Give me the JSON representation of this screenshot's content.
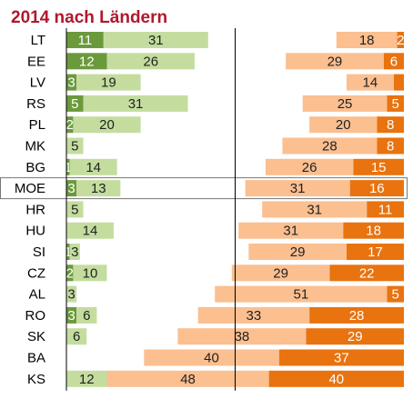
{
  "chart_data": {
    "type": "diverging_bar",
    "title": "2014 nach Ländern",
    "categories": [
      "LT",
      "EE",
      "LV",
      "RS",
      "PL",
      "MK",
      "BG",
      "MOE",
      "HR",
      "HU",
      "SI",
      "CZ",
      "AL",
      "RO",
      "SK",
      "BA",
      "KS"
    ],
    "highlight": "MOE",
    "xlim": [
      0,
      100
    ],
    "series": [
      {
        "color": "#6b9a3c",
        "label_color": "#ffffff",
        "stack": "left",
        "values": [
          11,
          12,
          3,
          5,
          2,
          null,
          1,
          3,
          null,
          null,
          1,
          2,
          null,
          3,
          null,
          null,
          null
        ]
      },
      {
        "color": "#c4dd9f",
        "label_color": "#222222",
        "stack": "left",
        "values": [
          31,
          26,
          19,
          31,
          20,
          5,
          14,
          13,
          5,
          14,
          3,
          10,
          3,
          6,
          6,
          null,
          12
        ]
      },
      {
        "color": "#fbbf90",
        "label_color": "#222222",
        "stack": "right",
        "values": [
          18,
          29,
          14,
          25,
          20,
          28,
          26,
          31,
          31,
          31,
          29,
          29,
          51,
          33,
          38,
          40,
          48
        ]
      },
      {
        "color": "#e8730f",
        "label_color": "#ffffff",
        "stack": "right",
        "values": [
          2,
          6,
          3,
          5,
          8,
          8,
          15,
          16,
          11,
          18,
          17,
          22,
          5,
          28,
          29,
          37,
          40
        ],
        "value_labels": [
          "2",
          "6",
          null,
          "5",
          "8",
          "8",
          "15",
          "16",
          "11",
          "18",
          "17",
          "22",
          "5",
          "28",
          "29",
          "37",
          "40"
        ]
      }
    ]
  }
}
